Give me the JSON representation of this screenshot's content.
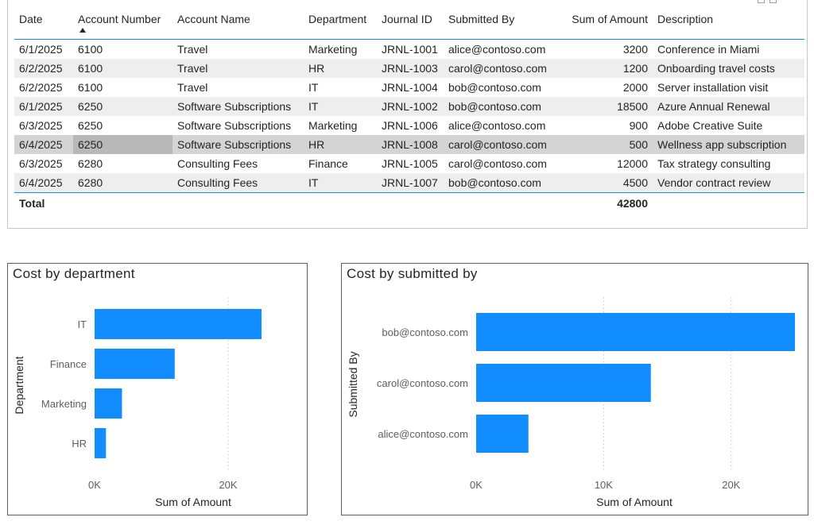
{
  "table": {
    "columns": [
      "Date",
      "Account Number",
      "Account Name",
      "Department",
      "Journal ID",
      "Submitted By",
      "Sum of Amount",
      "Description"
    ],
    "sorted_column": "Account Number",
    "rows": [
      [
        "6/1/2025",
        "6100",
        "Travel",
        "Marketing",
        "JRNL-1001",
        "alice@contoso.com",
        "3200",
        "Conference in Miami"
      ],
      [
        "6/2/2025",
        "6100",
        "Travel",
        "HR",
        "JRNL-1003",
        "carol@contoso.com",
        "1200",
        "Onboarding travel costs"
      ],
      [
        "6/2/2025",
        "6100",
        "Travel",
        "IT",
        "JRNL-1004",
        "bob@contoso.com",
        "2000",
        "Server installation visit"
      ],
      [
        "6/1/2025",
        "6250",
        "Software Subscriptions",
        "IT",
        "JRNL-1002",
        "bob@contoso.com",
        "18500",
        "Azure Annual Renewal"
      ],
      [
        "6/3/2025",
        "6250",
        "Software Subscriptions",
        "Marketing",
        "JRNL-1006",
        "alice@contoso.com",
        "900",
        "Adobe Creative Suite"
      ],
      [
        "6/4/2025",
        "6250",
        "Software Subscriptions",
        "HR",
        "JRNL-1008",
        "carol@contoso.com",
        "500",
        "Wellness app subscription"
      ],
      [
        "6/3/2025",
        "6280",
        "Consulting Fees",
        "Finance",
        "JRNL-1005",
        "carol@contoso.com",
        "12000",
        "Tax strategy consulting"
      ],
      [
        "6/4/2025",
        "6280",
        "Consulting Fees",
        "IT",
        "JRNL-1007",
        "bob@contoso.com",
        "4500",
        "Vendor contract review"
      ]
    ],
    "selected_row": 5,
    "total_label": "Total",
    "total_amount": "42800"
  },
  "chart_data": [
    {
      "type": "bar",
      "orientation": "horizontal",
      "title": "Cost by department",
      "categories": [
        "IT",
        "Finance",
        "Marketing",
        "HR"
      ],
      "values": [
        25000,
        12000,
        4100,
        1700
      ],
      "xlabel": "Sum of Amount",
      "ylabel": "Department",
      "xlim": [
        0,
        30000
      ],
      "xticks": [
        0,
        20000
      ],
      "xtick_labels": [
        "0K",
        "20K"
      ],
      "grid": true,
      "color": "#118dff"
    },
    {
      "type": "bar",
      "orientation": "horizontal",
      "title": "Cost by submitted by",
      "categories": [
        "bob@contoso.com",
        "carol@contoso.com",
        "alice@contoso.com"
      ],
      "values": [
        25000,
        13700,
        4100
      ],
      "xlabel": "Sum of Amount",
      "ylabel": "Submitted By",
      "xlim": [
        0,
        25000
      ],
      "xticks": [
        0,
        10000,
        20000
      ],
      "xtick_labels": [
        "0K",
        "10K",
        "20K"
      ],
      "grid": true,
      "color": "#118dff"
    }
  ]
}
